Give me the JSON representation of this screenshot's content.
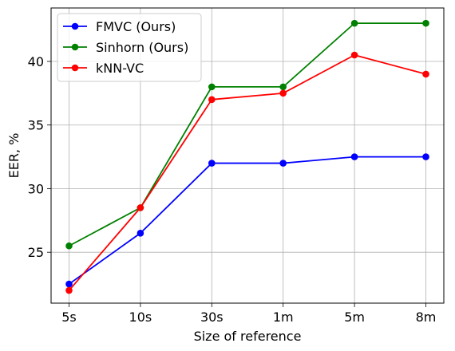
{
  "chart_data": {
    "type": "line",
    "xlabel": "Size of reference",
    "ylabel": "EER, %",
    "categories": [
      "5s",
      "10s",
      "30s",
      "1m",
      "5m",
      "8m"
    ],
    "ylim": [
      21,
      44.2
    ],
    "yticks": [
      25,
      30,
      35,
      40
    ],
    "grid": true,
    "legend_position": "top-left",
    "series": [
      {
        "name": "FMVC (Ours)",
        "color": "#0000ff",
        "values": [
          22.5,
          26.5,
          32.0,
          32.0,
          32.5,
          32.5
        ]
      },
      {
        "name": "Sinhorn (Ours)",
        "color": "#008000",
        "values": [
          25.5,
          28.5,
          38.0,
          38.0,
          43.0,
          43.0
        ]
      },
      {
        "name": "kNN-VC",
        "color": "#ff0000",
        "values": [
          22.0,
          28.5,
          37.0,
          37.5,
          40.5,
          39.0
        ]
      }
    ]
  }
}
